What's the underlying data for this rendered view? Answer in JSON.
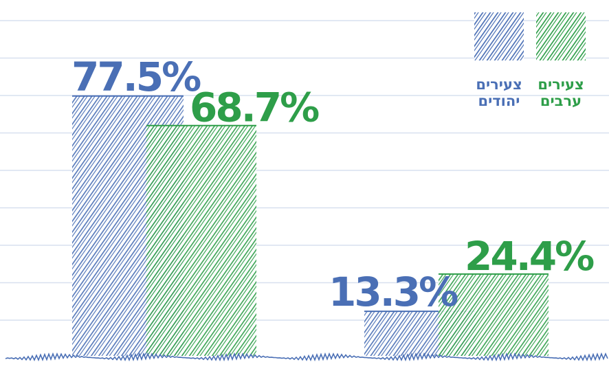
{
  "chart_data": {
    "type": "bar",
    "categories": [
      "",
      ""
    ],
    "series": [
      {
        "name": "צעירים יהודים",
        "legend_lines": [
          "צעירים",
          "יהודים"
        ],
        "color": "#4a6fb5",
        "values": [
          77.5,
          13.3
        ],
        "labels": [
          "77.5%",
          "13.3%"
        ]
      },
      {
        "name": "צעירים ערבים",
        "legend_lines": [
          "צעירים",
          "ערבים"
        ],
        "color": "#2e9e49",
        "values": [
          68.7,
          24.4
        ],
        "labels": [
          "68.7%",
          "24.4%"
        ]
      }
    ],
    "ylim": [
      0,
      100
    ],
    "grid": true,
    "legend": "top-right",
    "title": "",
    "xlabel": "",
    "ylabel": ""
  }
}
